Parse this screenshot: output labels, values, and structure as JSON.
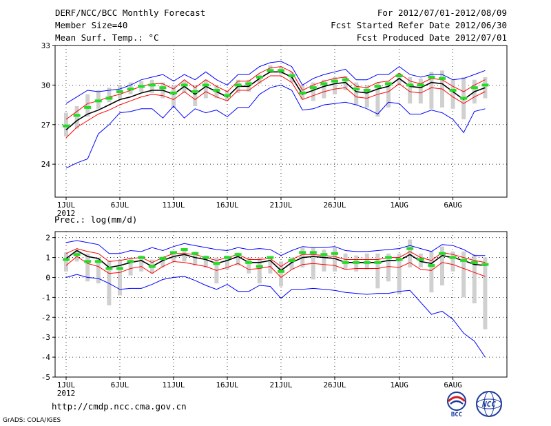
{
  "header": {
    "title": "DERF/NCC/BCC Monthly Forecast",
    "member_size": "Member Size=40",
    "variable": "Mean Surf. Temp.: °C",
    "period": "For 2012/07/01-2012/08/09",
    "start_date": "Fcst Started Refer Date 2012/06/30",
    "produced_date": "Fcst Produced Date 2012/07/01"
  },
  "footer": {
    "url": "http://cmdp.ncc.cma.gov.cn",
    "credit": "GrADS: COLA/IGES",
    "logo_left_text": "BCC",
    "logo_right_text": "NCC"
  },
  "colors": {
    "envelope": "#0000ff",
    "band": "#ff0000",
    "mean": "#000000",
    "median": "#22dd22",
    "box": "#d0d0d0"
  },
  "chart_data": [
    {
      "type": "box-ensemble",
      "title": "",
      "ylabel": "Mean Surf. Temp.: °C",
      "ylim": [
        21.5,
        33
      ],
      "yticks": [
        "24",
        "27",
        "30",
        "33"
      ],
      "xtick_labels": [
        "1JUL",
        "6JUL",
        "11JUL",
        "16JUL",
        "21JUL",
        "26JUL",
        "1AUG",
        "6AUG"
      ],
      "xtick_days": [
        1,
        6,
        11,
        16,
        21,
        26,
        32,
        37
      ],
      "year_label": "2012",
      "days": 40,
      "series": [
        {
          "name": "max",
          "values": [
            28.6,
            29.1,
            29.6,
            29.5,
            29.6,
            29.7,
            30.0,
            30.4,
            30.6,
            30.8,
            30.3,
            30.8,
            30.4,
            31.0,
            30.4,
            30.0,
            30.8,
            30.8,
            31.4,
            31.7,
            31.8,
            31.4,
            30.0,
            30.5,
            30.8,
            31.0,
            31.2,
            30.4,
            30.4,
            30.8,
            30.8,
            31.4,
            30.8,
            30.6,
            30.8,
            30.8,
            30.4,
            30.5,
            30.8,
            31.1
          ]
        },
        {
          "name": "upper",
          "values": [
            27.4,
            28.0,
            28.6,
            28.8,
            29.1,
            29.3,
            29.6,
            29.9,
            30.1,
            30.1,
            29.7,
            30.4,
            29.8,
            30.4,
            29.9,
            29.5,
            30.3,
            30.3,
            30.9,
            31.3,
            31.4,
            31.0,
            29.6,
            30.0,
            30.3,
            30.5,
            30.6,
            29.9,
            29.8,
            30.2,
            30.3,
            30.9,
            30.3,
            30.1,
            30.5,
            30.4,
            29.9,
            29.5,
            30.0,
            30.4
          ]
        },
        {
          "name": "mean",
          "values": [
            26.6,
            27.3,
            27.8,
            28.1,
            28.5,
            28.9,
            29.1,
            29.4,
            29.6,
            29.6,
            29.3,
            29.9,
            29.3,
            29.9,
            29.5,
            29.1,
            29.9,
            29.9,
            30.5,
            31.0,
            31.0,
            30.6,
            29.3,
            29.6,
            29.9,
            30.1,
            30.2,
            29.5,
            29.4,
            29.7,
            29.9,
            30.5,
            29.9,
            29.8,
            30.2,
            30.1,
            29.5,
            28.9,
            29.5,
            29.8
          ]
        },
        {
          "name": "lower",
          "values": [
            26.0,
            26.8,
            27.3,
            27.8,
            28.1,
            28.5,
            28.8,
            29.1,
            29.3,
            29.2,
            28.9,
            29.5,
            28.9,
            29.5,
            29.1,
            28.8,
            29.6,
            29.6,
            30.2,
            30.7,
            30.7,
            30.2,
            28.9,
            29.2,
            29.5,
            29.7,
            29.8,
            29.1,
            29.0,
            29.3,
            29.5,
            30.1,
            29.5,
            29.4,
            29.8,
            29.7,
            29.1,
            28.6,
            29.1,
            29.5
          ]
        },
        {
          "name": "min",
          "values": [
            23.7,
            24.1,
            24.4,
            26.3,
            27.0,
            27.9,
            28.0,
            28.2,
            28.2,
            27.5,
            28.4,
            27.5,
            28.2,
            27.9,
            28.1,
            27.6,
            28.3,
            28.3,
            29.3,
            29.8,
            30.0,
            29.6,
            28.1,
            28.2,
            28.5,
            28.6,
            28.7,
            28.5,
            28.2,
            27.8,
            28.7,
            28.6,
            27.8,
            27.8,
            28.1,
            27.9,
            27.4,
            26.4,
            28.0,
            28.2
          ]
        },
        {
          "name": "median",
          "values": [
            26.9,
            27.7,
            28.3,
            28.8,
            29.0,
            29.5,
            29.7,
            29.9,
            30.0,
            29.8,
            29.4,
            30.0,
            29.5,
            30.0,
            29.6,
            29.2,
            30.0,
            30.1,
            30.6,
            31.1,
            31.1,
            30.7,
            29.4,
            29.8,
            30.1,
            30.3,
            30.4,
            29.7,
            29.6,
            29.9,
            30.1,
            30.7,
            30.0,
            30.0,
            30.6,
            30.5,
            29.6,
            29.0,
            29.8,
            30.0
          ]
        },
        {
          "name": "box_top",
          "values": [
            27.9,
            28.4,
            29.3,
            29.6,
            29.8,
            30.0,
            30.2,
            30.3,
            30.4,
            30.2,
            30.0,
            30.3,
            30.0,
            30.4,
            30.0,
            29.6,
            30.4,
            30.4,
            30.8,
            31.5,
            31.4,
            31.0,
            30.0,
            30.2,
            30.4,
            30.6,
            30.7,
            30.2,
            30.0,
            30.2,
            30.3,
            30.9,
            30.6,
            30.5,
            31.0,
            31.1,
            30.4,
            30.6,
            30.4,
            30.6
          ]
        },
        {
          "name": "box_bottom",
          "values": [
            26.1,
            26.7,
            27.6,
            28.2,
            28.7,
            29.0,
            29.3,
            29.5,
            29.4,
            29.0,
            28.3,
            29.4,
            28.4,
            29.0,
            29.0,
            28.8,
            29.4,
            29.5,
            30.1,
            30.9,
            30.8,
            30.2,
            28.9,
            28.8,
            29.0,
            29.3,
            29.6,
            28.5,
            28.3,
            27.6,
            28.3,
            30.0,
            28.6,
            28.6,
            28.2,
            28.3,
            28.2,
            27.4,
            28.6,
            29.0
          ]
        }
      ]
    },
    {
      "type": "box-ensemble",
      "title": "",
      "ylabel": "Prec.: log(mm/d)",
      "ylim": [
        -5,
        2.3
      ],
      "yticks": [
        "-5",
        "-4",
        "-3",
        "-2",
        "-1",
        "0",
        "1",
        "2"
      ],
      "xtick_labels": [
        "1JUL",
        "6JUL",
        "11JUL",
        "16JUL",
        "21JUL",
        "26JUL",
        "1AUG",
        "6AUG"
      ],
      "xtick_days": [
        1,
        6,
        11,
        16,
        21,
        26,
        32,
        37
      ],
      "year_label": "2012",
      "days": 40,
      "series": [
        {
          "name": "max",
          "values": [
            1.75,
            1.85,
            1.75,
            1.65,
            1.2,
            1.2,
            1.35,
            1.3,
            1.5,
            1.35,
            1.55,
            1.7,
            1.6,
            1.5,
            1.4,
            1.35,
            1.5,
            1.4,
            1.45,
            1.4,
            1.1,
            1.35,
            1.55,
            1.5,
            1.5,
            1.55,
            1.35,
            1.3,
            1.3,
            1.35,
            1.4,
            1.45,
            1.6,
            1.45,
            1.3,
            1.65,
            1.6,
            1.4,
            1.1,
            1.1
          ]
        },
        {
          "name": "upper",
          "values": [
            1.2,
            1.45,
            1.3,
            1.2,
            0.8,
            0.85,
            0.95,
            1.0,
            0.75,
            1.0,
            1.2,
            1.2,
            1.15,
            1.0,
            0.85,
            1.0,
            1.15,
            0.9,
            0.9,
            0.95,
            0.55,
            0.9,
            1.15,
            1.15,
            1.1,
            1.05,
            0.9,
            0.9,
            0.9,
            0.9,
            1.0,
            1.0,
            1.3,
            1.0,
            0.85,
            1.25,
            1.15,
            1.0,
            0.85,
            0.75
          ]
        },
        {
          "name": "mean",
          "values": [
            0.95,
            1.35,
            1.05,
            0.95,
            0.5,
            0.6,
            0.75,
            0.85,
            0.55,
            0.85,
            1.05,
            1.15,
            1.0,
            0.9,
            0.7,
            0.85,
            1.05,
            0.75,
            0.75,
            0.85,
            0.35,
            0.75,
            1.0,
            1.05,
            1.0,
            0.95,
            0.75,
            0.75,
            0.75,
            0.75,
            0.85,
            0.85,
            1.15,
            0.8,
            0.7,
            1.1,
            1.0,
            0.85,
            0.65,
            0.6
          ]
        },
        {
          "name": "lower",
          "values": [
            0.6,
            1.05,
            0.7,
            0.55,
            0.2,
            0.25,
            0.45,
            0.55,
            0.2,
            0.55,
            0.8,
            0.75,
            0.65,
            0.55,
            0.35,
            0.5,
            0.7,
            0.4,
            0.45,
            0.55,
            0.0,
            0.4,
            0.65,
            0.7,
            0.65,
            0.6,
            0.4,
            0.45,
            0.45,
            0.45,
            0.55,
            0.5,
            0.75,
            0.4,
            0.35,
            0.75,
            0.65,
            0.45,
            0.25,
            0.05
          ]
        },
        {
          "name": "min",
          "values": [
            0.0,
            0.15,
            0.0,
            -0.05,
            -0.3,
            -0.6,
            -0.55,
            -0.55,
            -0.35,
            -0.1,
            0.0,
            0.05,
            -0.15,
            -0.4,
            -0.6,
            -0.35,
            -0.7,
            -0.7,
            -0.4,
            -0.45,
            -1.05,
            -0.6,
            -0.6,
            -0.55,
            -0.6,
            -0.65,
            -0.75,
            -0.8,
            -0.85,
            -0.8,
            -0.8,
            -0.7,
            -0.65,
            -1.25,
            -1.85,
            -1.7,
            -2.1,
            -2.8,
            -3.2,
            -4.0
          ]
        },
        {
          "name": "median",
          "values": [
            0.9,
            1.15,
            0.8,
            0.8,
            0.45,
            0.45,
            0.8,
            1.0,
            0.55,
            0.95,
            1.25,
            1.4,
            1.2,
            1.0,
            0.7,
            1.0,
            1.15,
            0.75,
            0.55,
            1.0,
            0.3,
            0.85,
            1.25,
            1.25,
            1.15,
            1.2,
            0.75,
            0.75,
            0.75,
            0.75,
            1.0,
            0.9,
            1.45,
            0.9,
            0.6,
            1.2,
            1.0,
            0.85,
            0.75,
            0.65
          ]
        },
        {
          "name": "box_top",
          "values": [
            1.25,
            1.4,
            1.2,
            1.0,
            0.85,
            0.9,
            1.0,
            1.1,
            0.9,
            1.05,
            1.3,
            1.45,
            1.3,
            1.1,
            1.0,
            1.1,
            1.25,
            1.0,
            1.0,
            1.05,
            0.8,
            1.0,
            1.5,
            1.5,
            1.4,
            1.5,
            1.2,
            1.1,
            1.2,
            1.2,
            1.2,
            1.2,
            1.9,
            1.2,
            1.3,
            1.55,
            1.3,
            1.3,
            1.15,
            1.0
          ]
        },
        {
          "name": "box_bottom",
          "values": [
            0.3,
            0.8,
            -0.2,
            -0.3,
            -1.4,
            -0.9,
            0.1,
            0.3,
            0.2,
            0.5,
            0.8,
            0.8,
            0.6,
            0.5,
            -0.3,
            0.4,
            0.6,
            0.2,
            -0.3,
            0.2,
            -0.45,
            0.4,
            0.5,
            -0.1,
            0.3,
            0.3,
            0.4,
            0.3,
            0.4,
            -0.55,
            -0.2,
            -0.85,
            0.5,
            0.5,
            -0.75,
            -0.4,
            0.3,
            -1.0,
            -1.3,
            -2.6
          ]
        }
      ]
    }
  ]
}
